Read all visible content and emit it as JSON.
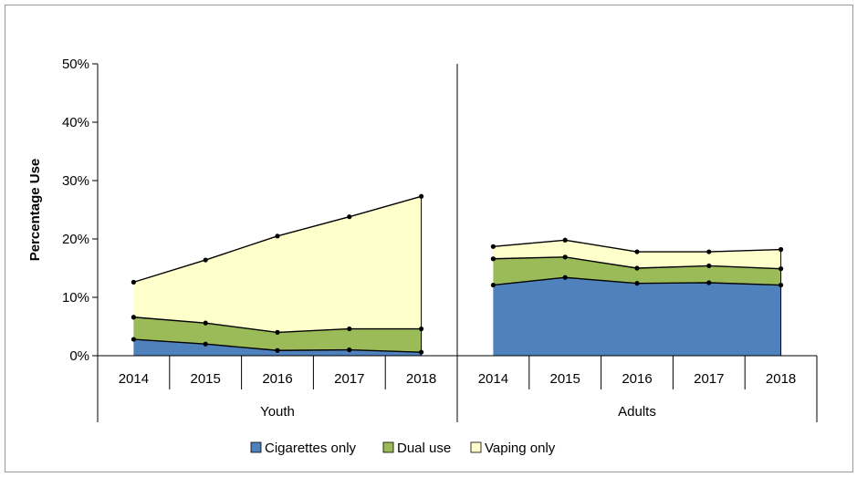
{
  "chart_data": {
    "type": "area",
    "stacked": true,
    "ylabel": "Percentage Use",
    "ylim": [
      0,
      50
    ],
    "yticks": [
      "0%",
      "10%",
      "20%",
      "30%",
      "40%",
      "50%"
    ],
    "groups": [
      {
        "name": "Youth",
        "categories": [
          "2014",
          "2015",
          "2016",
          "2017",
          "2018"
        ],
        "series": [
          {
            "name": "Cigarettes only",
            "values": [
              2.8,
              2.0,
              0.9,
              1.0,
              0.6
            ]
          },
          {
            "name": "Dual use",
            "values": [
              3.8,
              3.6,
              3.1,
              3.6,
              4.0
            ]
          },
          {
            "name": "Vaping only",
            "values": [
              6.0,
              10.8,
              16.5,
              19.2,
              22.7
            ]
          }
        ]
      },
      {
        "name": "Adults",
        "categories": [
          "2014",
          "2015",
          "2016",
          "2017",
          "2018"
        ],
        "series": [
          {
            "name": "Cigarettes only",
            "values": [
              12.1,
              13.4,
              12.4,
              12.5,
              12.1
            ]
          },
          {
            "name": "Dual use",
            "values": [
              4.5,
              3.5,
              2.6,
              2.9,
              2.8
            ]
          },
          {
            "name": "Vaping only",
            "values": [
              2.1,
              2.9,
              2.8,
              2.4,
              3.3
            ]
          }
        ]
      }
    ],
    "legend": {
      "placement": "bottom",
      "entries": [
        {
          "label": "Cigarettes only",
          "color": "#4f81bd"
        },
        {
          "label": "Dual use",
          "color": "#9bbb59"
        },
        {
          "label": "Vaping only",
          "color": "#ffffcc"
        }
      ]
    },
    "grid": false
  }
}
